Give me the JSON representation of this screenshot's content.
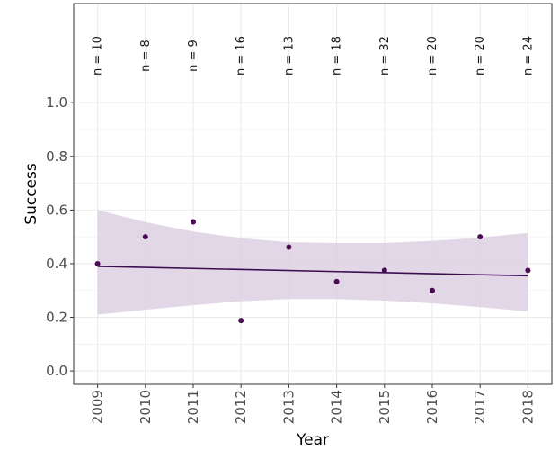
{
  "chart_data": {
    "type": "scatter",
    "xlabel": "Year",
    "ylabel": "Success",
    "xlim": [
      2008.5,
      2018.5
    ],
    "ylim": [
      -0.05,
      1.37
    ],
    "y_ticks": [
      0.0,
      0.2,
      0.4,
      0.6,
      0.8,
      1.0
    ],
    "y_tick_labels": [
      "0.0",
      "0.2",
      "0.4",
      "0.6",
      "0.8",
      "1.0"
    ],
    "x_ticks": [
      2009,
      2010,
      2011,
      2012,
      2013,
      2014,
      2015,
      2016,
      2017,
      2018
    ],
    "x_tick_labels": [
      "2009",
      "2010",
      "2011",
      "2012",
      "2013",
      "2014",
      "2015",
      "2016",
      "2017",
      "2018"
    ],
    "x": [
      2009,
      2010,
      2011,
      2012,
      2013,
      2014,
      2015,
      2016,
      2017,
      2018
    ],
    "y": [
      0.4,
      0.5,
      0.556,
      0.188,
      0.462,
      0.333,
      0.375,
      0.3,
      0.5,
      0.375
    ],
    "n_labels": [
      "n = 10",
      "n = 8",
      "n = 9",
      "n = 16",
      "n = 13",
      "n = 18",
      "n = 32",
      "n = 20",
      "n = 20",
      "n = 24"
    ],
    "trend": {
      "x": [
        2009,
        2018
      ],
      "y": [
        0.39,
        0.355
      ]
    },
    "confidence_band": {
      "x": [
        2009,
        2010,
        2011,
        2012,
        2013,
        2014,
        2015,
        2016,
        2017,
        2018
      ],
      "upper": [
        0.6,
        0.555,
        0.52,
        0.495,
        0.48,
        0.477,
        0.477,
        0.485,
        0.497,
        0.515
      ],
      "lower": [
        0.21,
        0.228,
        0.245,
        0.26,
        0.268,
        0.268,
        0.262,
        0.252,
        0.238,
        0.222
      ]
    },
    "grid": true,
    "colors": {
      "point": "#4a0a54",
      "trend": "#3b0f4f",
      "band": "#ddd0e2",
      "grid": "#ebebeb",
      "panel_border": "#333333"
    }
  }
}
